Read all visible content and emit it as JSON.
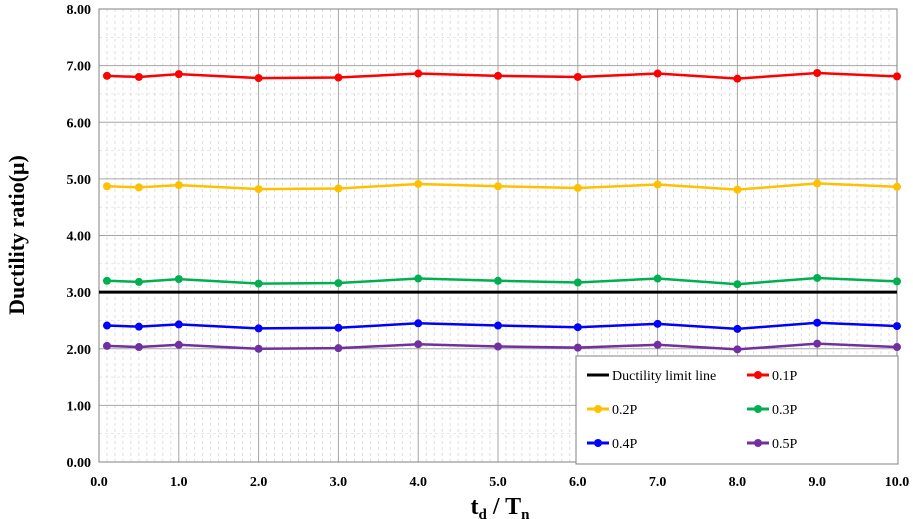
{
  "chart_data": {
    "type": "line",
    "xlabel_main": "t",
    "xlabel_sub1": "d",
    "xlabel_sep": " / T",
    "xlabel_sub2": "n",
    "ylabel": "Ductility ratio(μ)",
    "x": [
      0.1,
      0.5,
      1.0,
      2.0,
      3.0,
      4.0,
      5.0,
      6.0,
      7.0,
      8.0,
      9.0,
      10.0
    ],
    "xlim": [
      0,
      10
    ],
    "ylim": [
      0,
      8
    ],
    "x_ticks": [
      "0.0",
      "1.0",
      "2.0",
      "3.0",
      "4.0",
      "5.0",
      "6.0",
      "7.0",
      "8.0",
      "9.0",
      "10.0"
    ],
    "y_ticks": [
      "0.00",
      "1.00",
      "2.00",
      "3.00",
      "4.00",
      "5.00",
      "6.00",
      "7.00",
      "8.00"
    ],
    "grid": true,
    "legend_position": "bottom-right",
    "limit_line": {
      "name": "Ductility limit line",
      "value": 3.0,
      "color": "#000000"
    },
    "series": [
      {
        "name": "0.1P",
        "color": "#ff0000",
        "values": [
          6.82,
          6.8,
          6.85,
          6.78,
          6.79,
          6.86,
          6.82,
          6.8,
          6.86,
          6.77,
          6.87,
          6.81
        ]
      },
      {
        "name": "0.2P",
        "color": "#ffc000",
        "values": [
          4.87,
          4.85,
          4.89,
          4.82,
          4.83,
          4.91,
          4.87,
          4.84,
          4.9,
          4.81,
          4.92,
          4.86
        ]
      },
      {
        "name": "0.3P",
        "color": "#00b050",
        "values": [
          3.2,
          3.18,
          3.23,
          3.15,
          3.16,
          3.24,
          3.2,
          3.17,
          3.24,
          3.14,
          3.25,
          3.19
        ]
      },
      {
        "name": "0.4P",
        "color": "#0000ff",
        "values": [
          2.41,
          2.39,
          2.43,
          2.36,
          2.37,
          2.45,
          2.41,
          2.38,
          2.44,
          2.35,
          2.46,
          2.4
        ]
      },
      {
        "name": "0.5P",
        "color": "#7030a0",
        "values": [
          2.05,
          2.03,
          2.07,
          2.0,
          2.01,
          2.08,
          2.04,
          2.02,
          2.07,
          1.99,
          2.09,
          2.03
        ]
      }
    ]
  }
}
